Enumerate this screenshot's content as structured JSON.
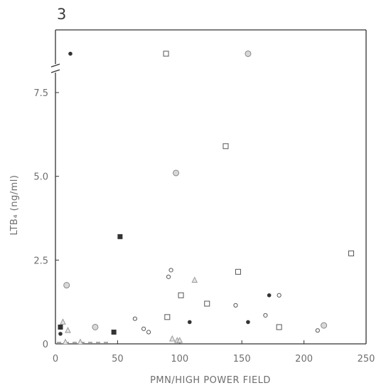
{
  "panel_label": "3",
  "chart_data": {
    "type": "scatter",
    "title": "",
    "xlabel": "PMN/HIGH POWER FIELD",
    "ylabel": "LTB₄ (ng/ml)",
    "xlim": [
      0,
      250
    ],
    "ylim": [
      0,
      8.75
    ],
    "y_axis_break": true,
    "x_ticks": [
      "0",
      "50",
      "100",
      "150",
      "200",
      "250"
    ],
    "y_ticks": [
      "0",
      "2.5",
      "5.0",
      "7.5"
    ],
    "grid": false,
    "legend": "none",
    "series": [
      {
        "marker": "open-square",
        "points": [
          [
            89,
            8.6
          ],
          [
            137,
            5.9
          ],
          [
            238,
            2.7
          ],
          [
            147,
            2.15
          ],
          [
            101,
            1.45
          ],
          [
            122,
            1.2
          ],
          [
            90,
            0.8
          ],
          [
            180,
            0.5
          ]
        ]
      },
      {
        "marker": "filled-square",
        "points": [
          [
            52,
            3.2
          ],
          [
            47,
            0.35
          ],
          [
            4,
            0.5
          ]
        ]
      },
      {
        "marker": "filled-circle",
        "points": [
          [
            12,
            8.6
          ],
          [
            172,
            1.45
          ],
          [
            108,
            0.65
          ],
          [
            155,
            0.65
          ],
          [
            4,
            0.3
          ]
        ]
      },
      {
        "marker": "open-circle",
        "points": [
          [
            93,
            2.2
          ],
          [
            91,
            2.0
          ],
          [
            180,
            1.45
          ],
          [
            64,
            0.75
          ],
          [
            71,
            0.45
          ],
          [
            75,
            0.35
          ],
          [
            211,
            0.4
          ],
          [
            145,
            1.15
          ],
          [
            169,
            0.85
          ]
        ]
      },
      {
        "marker": "dotted-circle",
        "points": [
          [
            155,
            8.6
          ],
          [
            97,
            5.1
          ],
          [
            9,
            1.75
          ],
          [
            32,
            0.5
          ],
          [
            216,
            0.55
          ]
        ]
      },
      {
        "marker": "open-triangle",
        "points": [
          [
            112,
            1.9
          ],
          [
            94,
            0.15
          ],
          [
            98,
            0.1
          ],
          [
            100,
            0.1
          ],
          [
            10,
            0.4
          ],
          [
            6,
            0.65
          ],
          [
            8,
            0.05
          ],
          [
            20,
            0.05
          ]
        ]
      }
    ]
  }
}
